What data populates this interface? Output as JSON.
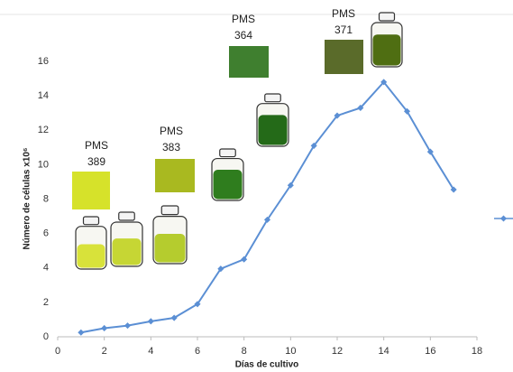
{
  "chart_data": {
    "type": "line",
    "x_label": "Días de cultivo",
    "y_label": "Número de células x10⁶",
    "x": [
      1,
      2,
      3,
      4,
      5,
      6,
      7,
      8,
      9,
      10,
      11,
      12,
      13,
      14,
      15,
      16,
      17
    ],
    "series": [
      {
        "color": "#5b8fd4",
        "values": [
          0.25,
          0.5,
          0.65,
          0.9,
          1.1,
          1.9,
          3.95,
          4.5,
          6.8,
          8.8,
          11.1,
          12.85,
          13.3,
          14.8,
          13.1,
          10.75,
          8.55
        ]
      }
    ],
    "xlim": [
      0,
      18
    ],
    "xticks": [
      0,
      2,
      4,
      6,
      8,
      10,
      12,
      14,
      16,
      18
    ],
    "ylim": [
      0,
      16
    ],
    "yticks": [
      0,
      2,
      4,
      6,
      8,
      10,
      12,
      14,
      16
    ],
    "grid": false,
    "annotations": [
      {
        "lines": [
          "PMS",
          "389"
        ],
        "color": "#d6e22a"
      },
      {
        "lines": [
          "PMS",
          "383"
        ],
        "color": "#a9b920"
      },
      {
        "lines": [
          "PMS",
          "364"
        ],
        "color": "#3f7f2f"
      },
      {
        "lines": [
          "PMS",
          "371"
        ],
        "color": "#5a6b2a"
      }
    ]
  }
}
